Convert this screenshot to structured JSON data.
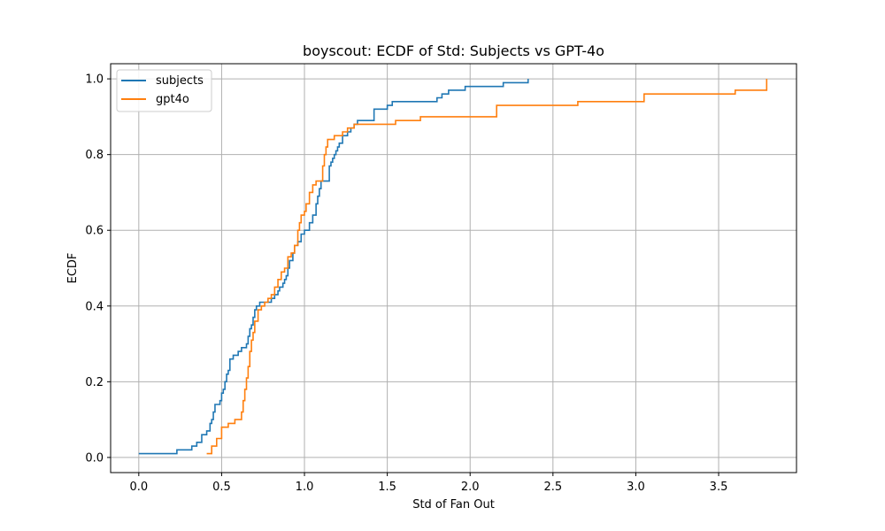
{
  "chart_data": {
    "type": "line",
    "title": "boyscout: ECDF of Std: Subjects vs GPT-4o",
    "xlabel": "Std of Fan Out",
    "ylabel": "ECDF",
    "xlim": [
      -0.17,
      3.97
    ],
    "ylim": [
      -0.04,
      1.04
    ],
    "xticks": [
      "0.0",
      "0.5",
      "1.0",
      "1.5",
      "2.0",
      "2.5",
      "3.0",
      "3.5"
    ],
    "yticks": [
      "0.0",
      "0.2",
      "0.4",
      "0.6",
      "0.8",
      "1.0"
    ],
    "grid": true,
    "legend_position": "top-left",
    "series": [
      {
        "name": "subjects",
        "color": "#1f77b4",
        "x": [
          0.0,
          0.23,
          0.32,
          0.35,
          0.38,
          0.41,
          0.43,
          0.44,
          0.45,
          0.46,
          0.49,
          0.5,
          0.51,
          0.52,
          0.53,
          0.54,
          0.55,
          0.57,
          0.6,
          0.62,
          0.65,
          0.66,
          0.67,
          0.68,
          0.69,
          0.7,
          0.71,
          0.73,
          0.75,
          0.77,
          0.8,
          0.82,
          0.84,
          0.85,
          0.87,
          0.88,
          0.89,
          0.9,
          0.91,
          0.93,
          0.94,
          0.96,
          0.98,
          1.0,
          1.03,
          1.05,
          1.07,
          1.08,
          1.09,
          1.1,
          1.12,
          1.15,
          1.16,
          1.17,
          1.18,
          1.19,
          1.2,
          1.21,
          1.23,
          1.26,
          1.28,
          1.3,
          1.32,
          1.34,
          1.36,
          1.42,
          1.5,
          1.53,
          1.6,
          1.72,
          1.8,
          1.83,
          1.87,
          1.91,
          1.97,
          2.05,
          2.2,
          2.35
        ],
        "y": [
          0.01,
          0.02,
          0.03,
          0.04,
          0.06,
          0.07,
          0.09,
          0.1,
          0.12,
          0.14,
          0.15,
          0.17,
          0.18,
          0.2,
          0.22,
          0.23,
          0.26,
          0.27,
          0.28,
          0.29,
          0.3,
          0.32,
          0.34,
          0.35,
          0.37,
          0.39,
          0.4,
          0.41,
          0.41,
          0.41,
          0.42,
          0.43,
          0.44,
          0.45,
          0.46,
          0.47,
          0.48,
          0.5,
          0.52,
          0.54,
          0.56,
          0.57,
          0.59,
          0.6,
          0.62,
          0.64,
          0.67,
          0.69,
          0.71,
          0.73,
          0.73,
          0.77,
          0.78,
          0.79,
          0.8,
          0.81,
          0.82,
          0.83,
          0.85,
          0.86,
          0.87,
          0.88,
          0.89,
          0.89,
          0.89,
          0.92,
          0.93,
          0.94,
          0.94,
          0.94,
          0.95,
          0.96,
          0.97,
          0.97,
          0.98,
          0.98,
          0.99,
          1.0
        ]
      },
      {
        "name": "gpt4o",
        "color": "#ff7f0e",
        "x": [
          0.41,
          0.44,
          0.47,
          0.5,
          0.54,
          0.58,
          0.62,
          0.63,
          0.64,
          0.65,
          0.66,
          0.67,
          0.68,
          0.69,
          0.7,
          0.72,
          0.74,
          0.76,
          0.78,
          0.8,
          0.82,
          0.84,
          0.86,
          0.88,
          0.9,
          0.92,
          0.94,
          0.96,
          0.97,
          0.98,
          1.0,
          1.01,
          1.03,
          1.05,
          1.07,
          1.09,
          1.11,
          1.12,
          1.13,
          1.14,
          1.16,
          1.18,
          1.2,
          1.23,
          1.26,
          1.28,
          1.3,
          1.32,
          1.36,
          1.42,
          1.55,
          1.7,
          2.16,
          2.65,
          3.05,
          3.6,
          3.79
        ],
        "y": [
          0.01,
          0.03,
          0.05,
          0.08,
          0.09,
          0.1,
          0.12,
          0.15,
          0.18,
          0.21,
          0.24,
          0.28,
          0.31,
          0.33,
          0.36,
          0.39,
          0.4,
          0.41,
          0.42,
          0.43,
          0.45,
          0.47,
          0.49,
          0.5,
          0.53,
          0.54,
          0.56,
          0.6,
          0.62,
          0.64,
          0.65,
          0.67,
          0.7,
          0.72,
          0.73,
          0.73,
          0.77,
          0.8,
          0.82,
          0.84,
          0.84,
          0.85,
          0.85,
          0.86,
          0.87,
          0.87,
          0.88,
          0.88,
          0.88,
          0.88,
          0.89,
          0.9,
          0.93,
          0.94,
          0.96,
          0.97,
          1.0
        ]
      }
    ]
  }
}
